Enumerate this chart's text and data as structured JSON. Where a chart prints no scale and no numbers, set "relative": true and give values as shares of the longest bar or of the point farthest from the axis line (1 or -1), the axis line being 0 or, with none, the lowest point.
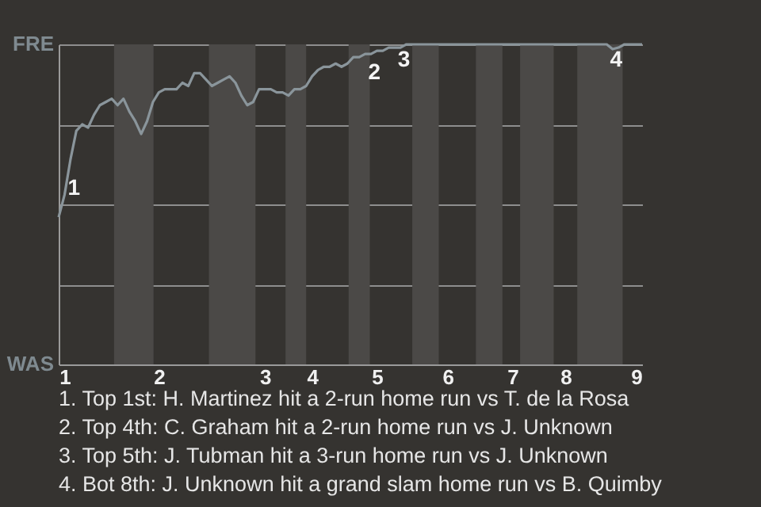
{
  "chart_data": {
    "type": "line",
    "relative": true,
    "categories": [
      null,
      "1",
      null,
      null,
      null,
      null,
      null,
      null,
      null,
      null,
      null,
      null,
      null,
      null,
      null,
      null,
      null,
      "2",
      null,
      null,
      null,
      null,
      null,
      null,
      null,
      null,
      null,
      null,
      null,
      null,
      null,
      null,
      null,
      null,
      null,
      "3",
      null,
      null,
      null,
      null,
      null,
      null,
      null,
      "4",
      null,
      null,
      null,
      null,
      null,
      null,
      null,
      null,
      null,
      null,
      "5",
      null,
      null,
      null,
      null,
      null,
      null,
      null,
      null,
      null,
      null,
      null,
      "6",
      null,
      null,
      null,
      null,
      null,
      null,
      null,
      null,
      null,
      null,
      "7",
      null,
      null,
      null,
      null,
      null,
      null,
      null,
      null,
      "8",
      null,
      null,
      null,
      null,
      null,
      null,
      null,
      null,
      null,
      null,
      null,
      "9",
      null
    ],
    "series": [
      {
        "color": "#8a959b",
        "values": [
          0.46,
          0.53,
          0.64,
          0.73,
          0.75,
          0.74,
          0.78,
          0.81,
          0.82,
          0.83,
          0.81,
          0.83,
          0.79,
          0.76,
          0.72,
          0.76,
          0.82,
          0.85,
          0.86,
          0.86,
          0.86,
          0.88,
          0.87,
          0.91,
          0.91,
          0.89,
          0.87,
          0.88,
          0.89,
          0.9,
          0.88,
          0.84,
          0.81,
          0.82,
          0.86,
          0.86,
          0.86,
          0.85,
          0.85,
          0.84,
          0.86,
          0.86,
          0.87,
          0.9,
          0.92,
          0.93,
          0.93,
          0.94,
          0.93,
          0.94,
          0.96,
          0.96,
          0.97,
          0.97,
          0.98,
          0.98,
          0.99,
          0.99,
          0.99,
          1,
          1,
          1,
          1,
          1,
          1,
          1,
          1,
          1,
          1,
          1,
          1,
          1,
          1,
          1,
          1,
          1,
          1,
          1,
          1,
          1,
          1,
          1,
          1,
          1,
          1,
          1,
          1,
          1,
          1,
          1,
          1,
          1,
          1,
          1,
          0.985,
          0.99,
          1,
          1,
          1,
          1
        ]
      }
    ],
    "grid": "y",
    "annotations": [
      "FRE",
      "WAS",
      "2",
      {
        "text": "1",
        "x": "1",
        "y": 0.6
      },
      {
        "text": "3",
        "y": 1
      },
      {
        "text": "4",
        "y": 1
      },
      "1. Top 1st: H. Martinez hit a 2-run home run vs T. de la Rosa",
      "2. Top 4th: C. Graham hit a 2-run home run vs J. Unknown",
      "3. Top 5th: J. Tubman hit a 3-run home run vs J. Unknown",
      "4. Bot 8th: J. Unknown hit a grand slam home run vs B. Quimby"
    ]
  }
}
